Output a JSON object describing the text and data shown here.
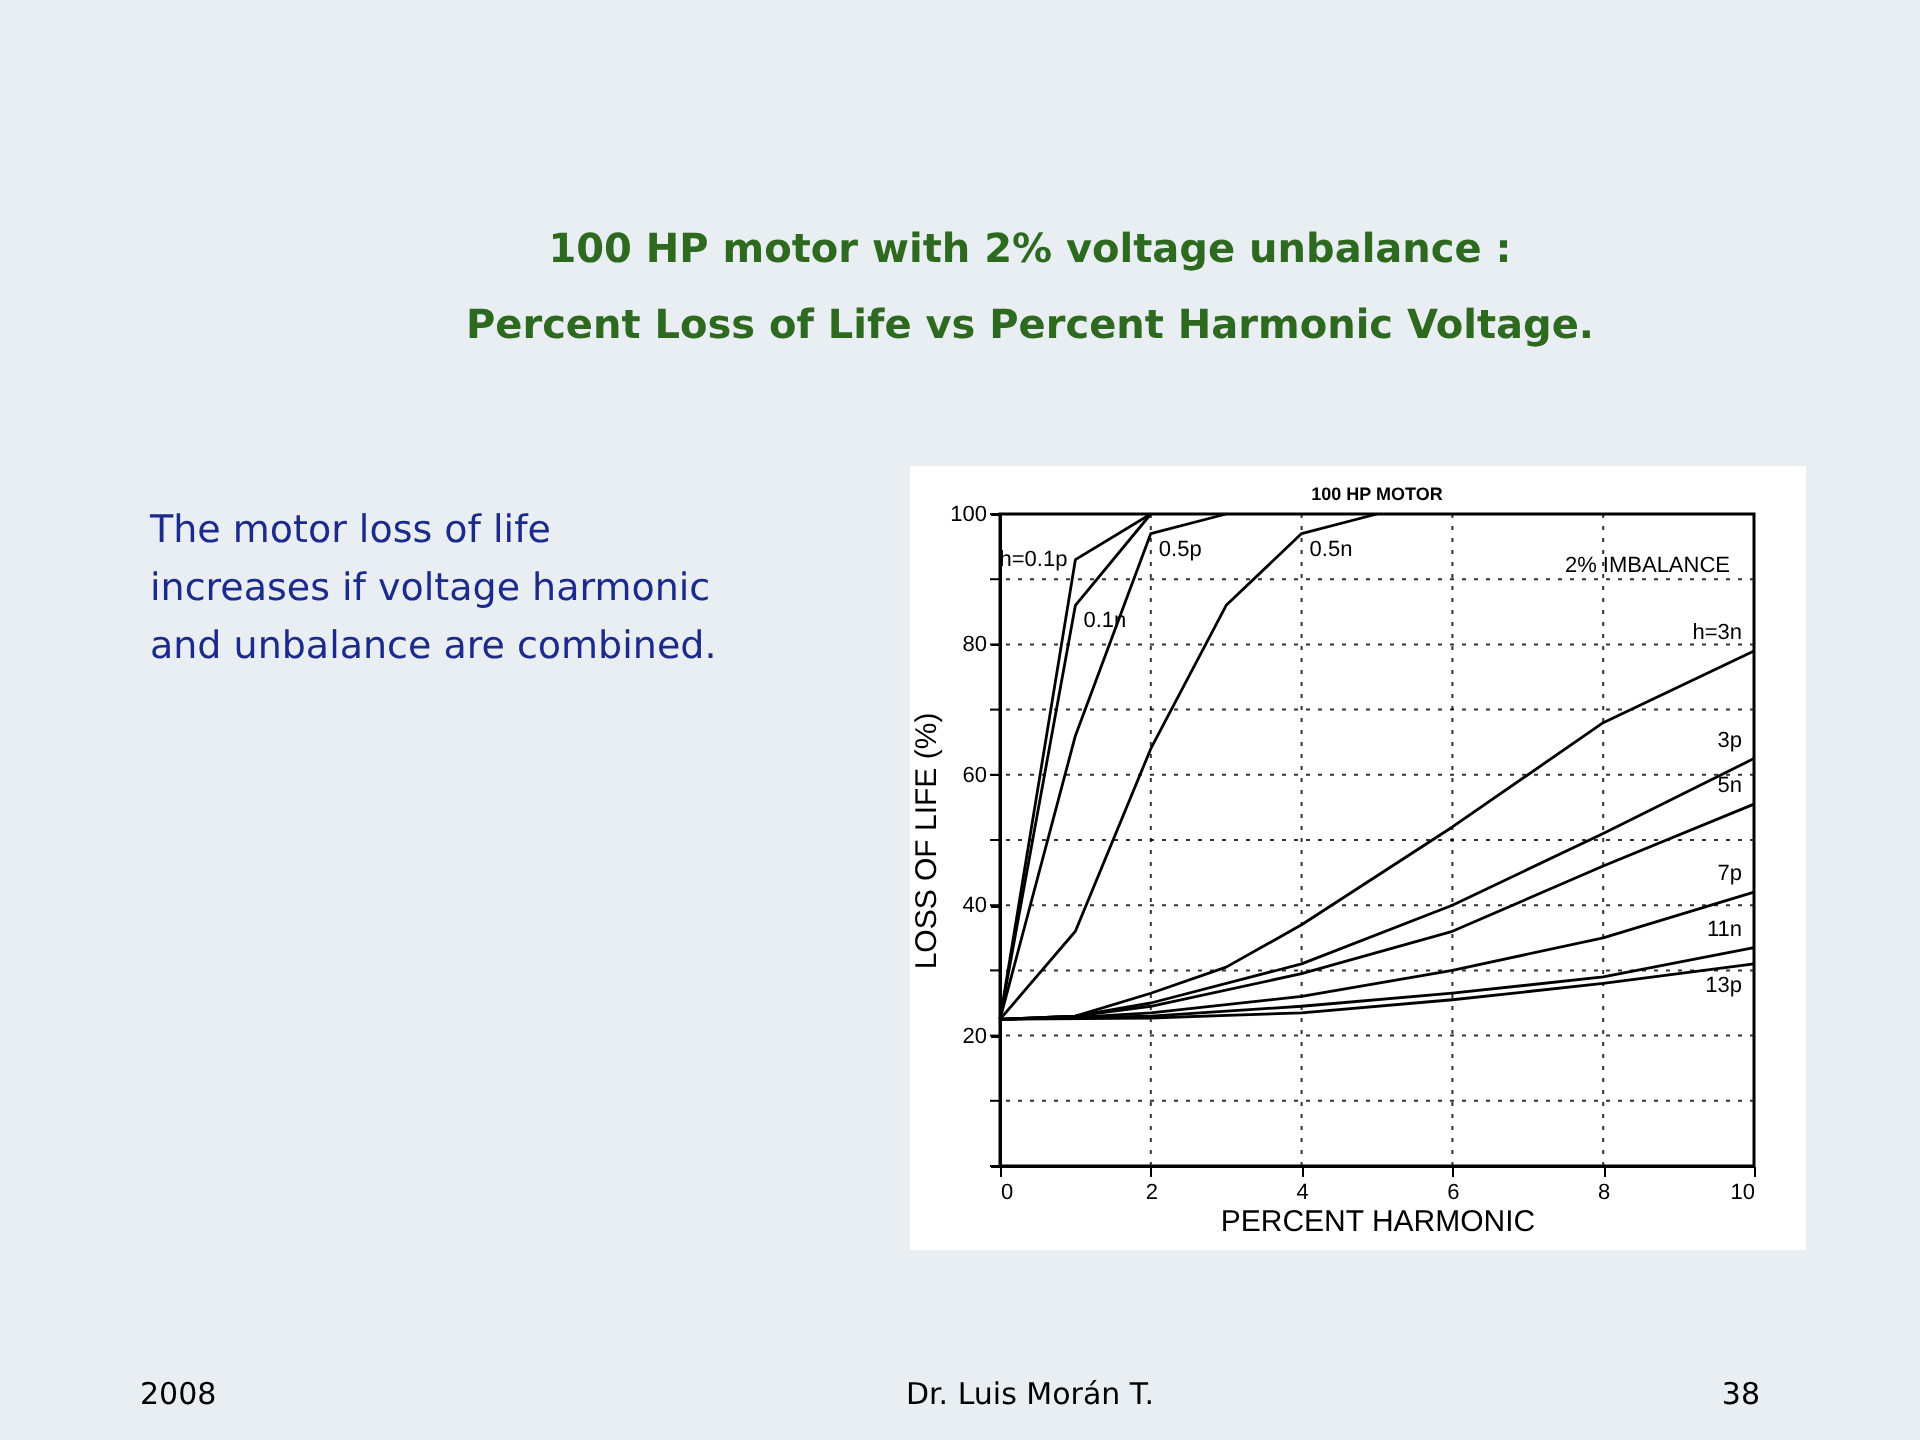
{
  "chart_data": {
    "type": "line",
    "title": "100 HP motor with 2% voltage unbalance :\nPercent Loss of Life vs Percent Harmonic Voltage.",
    "subtitle": "100 HP MOTOR",
    "xlabel": "PERCENT HARMONIC",
    "ylabel": "LOSS OF LIFE (%)",
    "xlim": [
      0,
      10
    ],
    "xticks": [
      0,
      2,
      4,
      6,
      8,
      10
    ],
    "ylim": [
      0,
      100
    ],
    "yticks": [
      {
        "value": 0,
        "label": null
      },
      {
        "value": 10,
        "label": null
      },
      20,
      {
        "value": 30,
        "label": null
      },
      40,
      {
        "value": 50,
        "label": null
      },
      60,
      {
        "value": 70,
        "label": null
      },
      80,
      {
        "value": 90,
        "label": null
      },
      100
    ],
    "grid": true,
    "legend": false,
    "marker": "none",
    "line_style": "solid",
    "series": [
      {
        "name": "h=0.1p",
        "color": "#000000",
        "x": [
          0,
          1,
          2
        ],
        "values": [
          22.5,
          93,
          100
        ]
      },
      {
        "name": "0.1n",
        "color": "#000000",
        "x": [
          0,
          1,
          2
        ],
        "values": [
          22.5,
          86,
          100
        ]
      },
      {
        "name": "0.5p",
        "color": "#000000",
        "x": [
          0,
          1,
          2,
          3
        ],
        "values": [
          22.5,
          66,
          97,
          100
        ]
      },
      {
        "name": "0.5n",
        "color": "#000000",
        "x": [
          0,
          1,
          2,
          3,
          4,
          5
        ],
        "values": [
          22.5,
          36,
          64,
          86,
          97,
          100
        ]
      },
      {
        "name": "h=3n",
        "color": "#000000",
        "x": [
          0,
          1,
          2,
          3,
          4,
          6,
          8,
          10
        ],
        "values": [
          22.5,
          23,
          26.5,
          30.5,
          37,
          52,
          68,
          79
        ]
      },
      {
        "name": "3p",
        "color": "#000000",
        "x": [
          0,
          1,
          2,
          4,
          6,
          8,
          10
        ],
        "values": [
          22.5,
          23,
          25,
          31,
          40,
          51,
          62.5
        ]
      },
      {
        "name": "5n",
        "color": "#000000",
        "x": [
          0,
          1,
          2,
          4,
          6,
          8,
          10
        ],
        "values": [
          22.5,
          23,
          24.5,
          29.5,
          36,
          46,
          55.5
        ]
      },
      {
        "name": "7p",
        "color": "#000000",
        "x": [
          0,
          1,
          2,
          4,
          6,
          8,
          10
        ],
        "values": [
          22.5,
          22.8,
          23.5,
          26,
          30,
          35,
          42
        ]
      },
      {
        "name": "11n",
        "color": "#000000",
        "x": [
          0,
          2,
          4,
          6,
          8,
          10
        ],
        "values": [
          22.5,
          23,
          24.5,
          26.5,
          29,
          33.5
        ]
      },
      {
        "name": "13p",
        "color": "#000000",
        "x": [
          0,
          2,
          4,
          6,
          8,
          10
        ],
        "values": [
          22.5,
          22.7,
          23.5,
          25.5,
          28,
          31
        ]
      }
    ],
    "annotations": [
      "2% IMBALANCE",
      "The motor loss of life increases if voltage harmonic and unbalance are combined.",
      "2008",
      "Dr. Luis Morán T.",
      "38"
    ]
  }
}
